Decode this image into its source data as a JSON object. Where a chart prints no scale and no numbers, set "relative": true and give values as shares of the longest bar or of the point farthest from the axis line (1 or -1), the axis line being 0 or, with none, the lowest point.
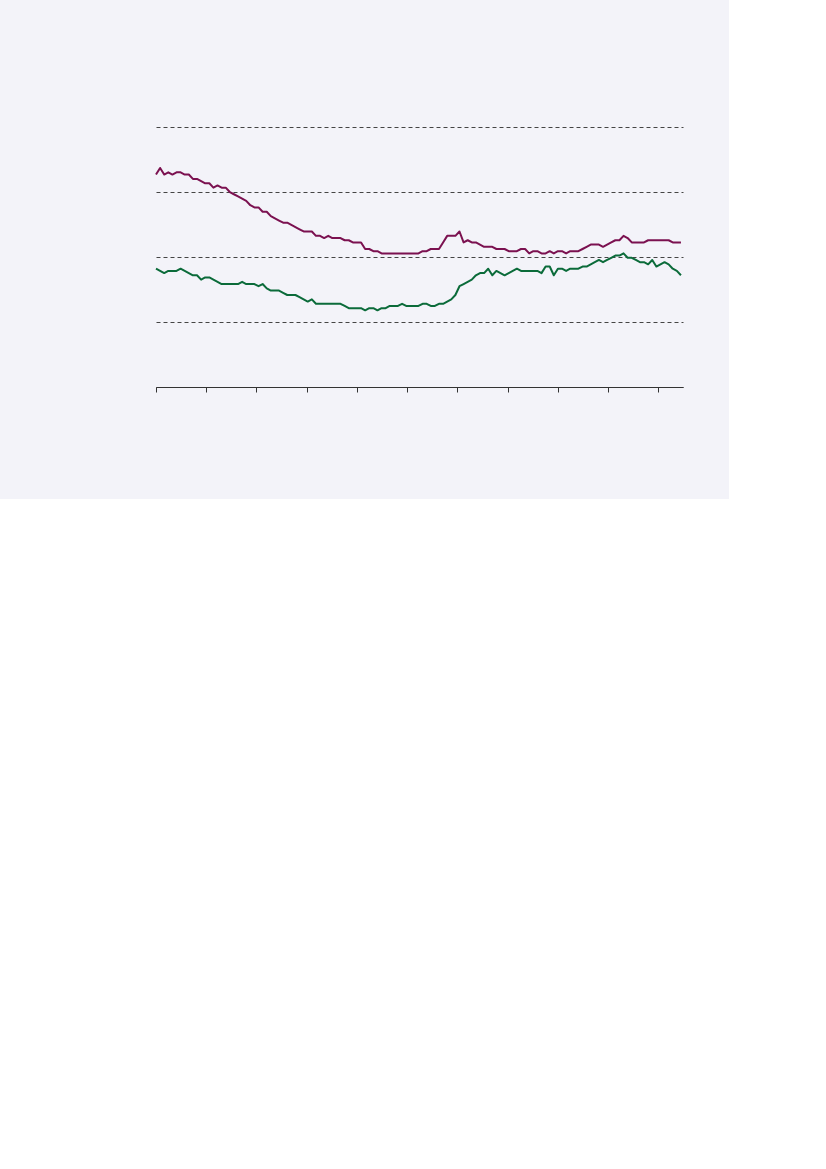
{
  "chart_data": {
    "type": "line",
    "relative": true,
    "grid": "y",
    "line_style": "solid",
    "marker": "none",
    "categories": [
      null,
      null,
      null,
      null,
      null,
      null,
      null,
      null,
      null,
      null,
      null,
      null,
      null,
      null,
      null,
      null,
      null,
      null,
      null,
      null,
      null,
      null,
      null,
      null,
      null,
      null,
      null,
      null,
      null,
      null,
      null,
      null,
      null,
      null,
      null,
      null,
      null,
      null,
      null,
      null,
      null,
      null,
      null,
      null,
      null,
      null,
      null,
      null,
      null,
      null,
      null,
      null,
      null,
      null,
      null,
      null,
      null,
      null,
      null,
      null,
      null,
      null,
      null,
      null,
      null,
      null,
      null,
      null,
      null,
      null,
      null,
      null,
      null,
      null,
      null,
      null,
      null,
      null,
      null,
      null,
      null,
      null,
      null,
      null,
      null,
      null,
      null,
      null,
      null,
      null,
      null,
      null,
      null,
      null,
      null,
      null,
      null,
      null,
      null,
      null,
      null,
      null,
      null,
      null,
      null,
      null,
      null,
      null,
      null,
      null,
      null,
      null,
      null,
      null,
      null,
      null,
      null,
      null,
      null,
      null,
      null,
      null,
      null,
      null,
      null,
      null,
      null,
      null,
      null
    ],
    "series": [
      {
        "color": "#7b1150",
        "values": [
          0.97,
          1.0,
          0.97,
          0.98,
          0.97,
          0.98,
          0.98,
          0.97,
          0.97,
          0.95,
          0.95,
          0.94,
          0.93,
          0.93,
          0.91,
          0.92,
          0.91,
          0.91,
          0.89,
          0.88,
          0.87,
          0.86,
          0.85,
          0.83,
          0.82,
          0.82,
          0.8,
          0.8,
          0.78,
          0.77,
          0.76,
          0.75,
          0.75,
          0.74,
          0.73,
          0.72,
          0.71,
          0.71,
          0.71,
          0.69,
          0.69,
          0.68,
          0.69,
          0.68,
          0.68,
          0.68,
          0.67,
          0.67,
          0.66,
          0.66,
          0.66,
          0.63,
          0.63,
          0.62,
          0.62,
          0.61,
          0.61,
          0.61,
          0.61,
          0.61,
          0.61,
          0.61,
          0.61,
          0.61,
          0.61,
          0.62,
          0.62,
          0.63,
          0.63,
          0.63,
          0.66,
          0.69,
          0.69,
          0.69,
          0.71,
          0.66,
          0.67,
          0.66,
          0.66,
          0.65,
          0.64,
          0.64,
          0.64,
          0.63,
          0.63,
          0.63,
          0.62,
          0.62,
          0.62,
          0.63,
          0.63,
          0.61,
          0.62,
          0.62,
          0.61,
          0.61,
          0.62,
          0.61,
          0.62,
          0.62,
          0.61,
          0.62,
          0.62,
          0.62,
          0.63,
          0.64,
          0.65,
          0.65,
          0.65,
          0.64,
          0.65,
          0.66,
          0.67,
          0.67,
          0.69,
          0.68,
          0.66,
          0.66,
          0.66,
          0.66,
          0.67,
          0.67,
          0.67,
          0.67,
          0.67,
          0.67,
          0.66,
          0.66,
          0.66
        ]
      },
      {
        "color": "#0b6b3a",
        "values": [
          0.54,
          0.53,
          0.52,
          0.53,
          0.53,
          0.53,
          0.54,
          0.53,
          0.52,
          0.51,
          0.51,
          0.49,
          0.5,
          0.5,
          0.49,
          0.48,
          0.47,
          0.47,
          0.47,
          0.47,
          0.47,
          0.48,
          0.47,
          0.47,
          0.47,
          0.46,
          0.47,
          0.45,
          0.44,
          0.44,
          0.44,
          0.43,
          0.42,
          0.42,
          0.42,
          0.41,
          0.4,
          0.39,
          0.4,
          0.38,
          0.38,
          0.38,
          0.38,
          0.38,
          0.38,
          0.38,
          0.37,
          0.36,
          0.36,
          0.36,
          0.36,
          0.35,
          0.36,
          0.36,
          0.35,
          0.36,
          0.36,
          0.37,
          0.37,
          0.37,
          0.38,
          0.37,
          0.37,
          0.37,
          0.37,
          0.38,
          0.38,
          0.37,
          0.37,
          0.38,
          0.38,
          0.39,
          0.4,
          0.42,
          0.46,
          0.47,
          0.48,
          0.49,
          0.51,
          0.52,
          0.52,
          0.54,
          0.51,
          0.53,
          0.52,
          0.51,
          0.52,
          0.53,
          0.54,
          0.53,
          0.53,
          0.53,
          0.53,
          0.53,
          0.52,
          0.55,
          0.55,
          0.51,
          0.54,
          0.54,
          0.53,
          0.54,
          0.54,
          0.54,
          0.55,
          0.55,
          0.56,
          0.57,
          0.58,
          0.57,
          0.58,
          0.59,
          0.6,
          0.6,
          0.61,
          0.59,
          0.59,
          0.58,
          0.57,
          0.57,
          0.56,
          0.58,
          0.55,
          0.56,
          0.57,
          0.56,
          0.54,
          0.53,
          0.51
        ]
      }
    ]
  }
}
